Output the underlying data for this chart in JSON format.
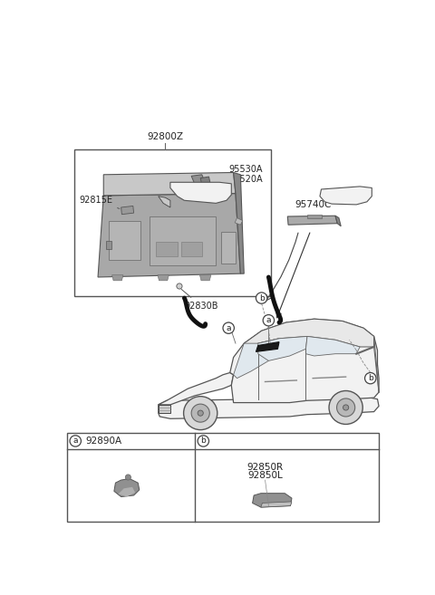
{
  "bg_color": "#ffffff",
  "colors": {
    "box_edge": "#555555",
    "text": "#222222",
    "line": "#666666",
    "lamp_body": "#909090",
    "lamp_dark": "#707070",
    "lamp_light": "#c0c0c0",
    "car_body": "#f2f2f2",
    "car_edge": "#555555",
    "window_fill": "#e8e8e8",
    "component_gray": "#909090"
  },
  "font_size_label": 7.5,
  "font_size_part": 7.0,
  "font_size_circle": 6.5,
  "parts": {
    "main_box_label": "92800Z",
    "p95530A": "95530A",
    "p95520A": "95520A",
    "p92815E": "92815E",
    "p92830B": "92830B",
    "p95740C": "95740C",
    "callout_a_label": "92890A",
    "callout_b_label_1": "92850R",
    "callout_b_label_2": "92850L"
  }
}
